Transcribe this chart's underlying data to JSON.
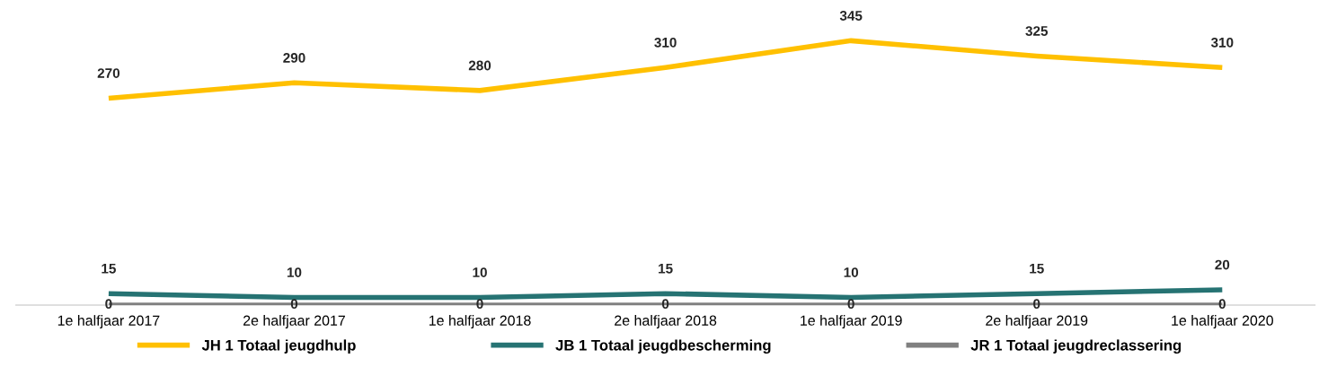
{
  "chart_data": {
    "type": "line",
    "categories": [
      "1e halfjaar 2017",
      "2e halfjaar 2017",
      "1e halfjaar 2018",
      "2e halfjaar 2018",
      "1e halfjaar 2019",
      "2e halfjaar 2019",
      "1e halfjaar 2020"
    ],
    "series": [
      {
        "name": "JH 1 Totaal jeugdhulp",
        "color": "#ffc000",
        "values": [
          270,
          290,
          280,
          310,
          345,
          325,
          310
        ]
      },
      {
        "name": "JB 1 Totaal jeugdbescherming",
        "color": "#267373",
        "values": [
          15,
          10,
          10,
          15,
          10,
          15,
          20
        ]
      },
      {
        "name": "JR 1 Totaal jeugdreclassering",
        "color": "#808080",
        "values": [
          0,
          0,
          0,
          0,
          0,
          0,
          0
        ]
      }
    ],
    "data_labels": true,
    "legend": "bottom",
    "grid": false,
    "marker": "none",
    "line_style": "solid"
  }
}
